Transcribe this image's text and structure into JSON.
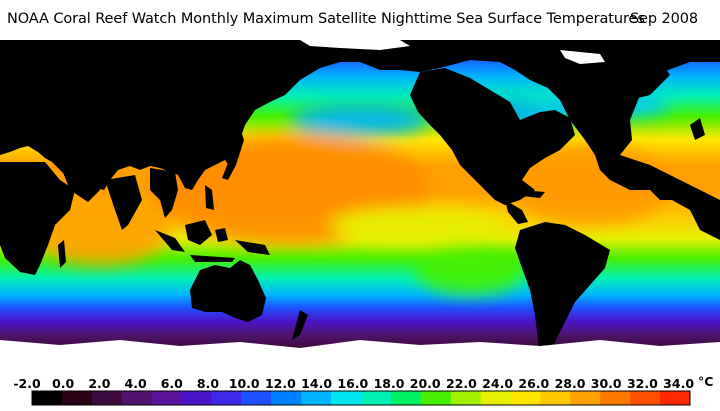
{
  "title": {
    "main": "NOAA Coral Reef Watch Monthly Maximum Satellite Nighttime Sea Surface Temperatures",
    "date": "Sep 2008"
  },
  "legend": {
    "ticks": [
      "-2.0",
      "0.0",
      "2.0",
      "4.0",
      "6.0",
      "8.0",
      "10.0",
      "12.0",
      "14.0",
      "16.0",
      "18.0",
      "20.0",
      "22.0",
      "24.0",
      "26.0",
      "28.0",
      "30.0",
      "32.0",
      "34.0"
    ],
    "unit": "°C",
    "colors": [
      "#000000",
      "#2a0014",
      "#3c0a3c",
      "#50146e",
      "#5a149c",
      "#4b14c8",
      "#3c28e6",
      "#1e50ff",
      "#0082ff",
      "#00b4ff",
      "#00e6f0",
      "#00f0b4",
      "#00f064",
      "#46f000",
      "#a0f000",
      "#e6f000",
      "#ffe600",
      "#ffc800",
      "#ffa000",
      "#ff7800",
      "#ff5000",
      "#ff2800"
    ]
  },
  "map": {
    "land_color": "#000000",
    "ice_color": "#ffffff"
  }
}
